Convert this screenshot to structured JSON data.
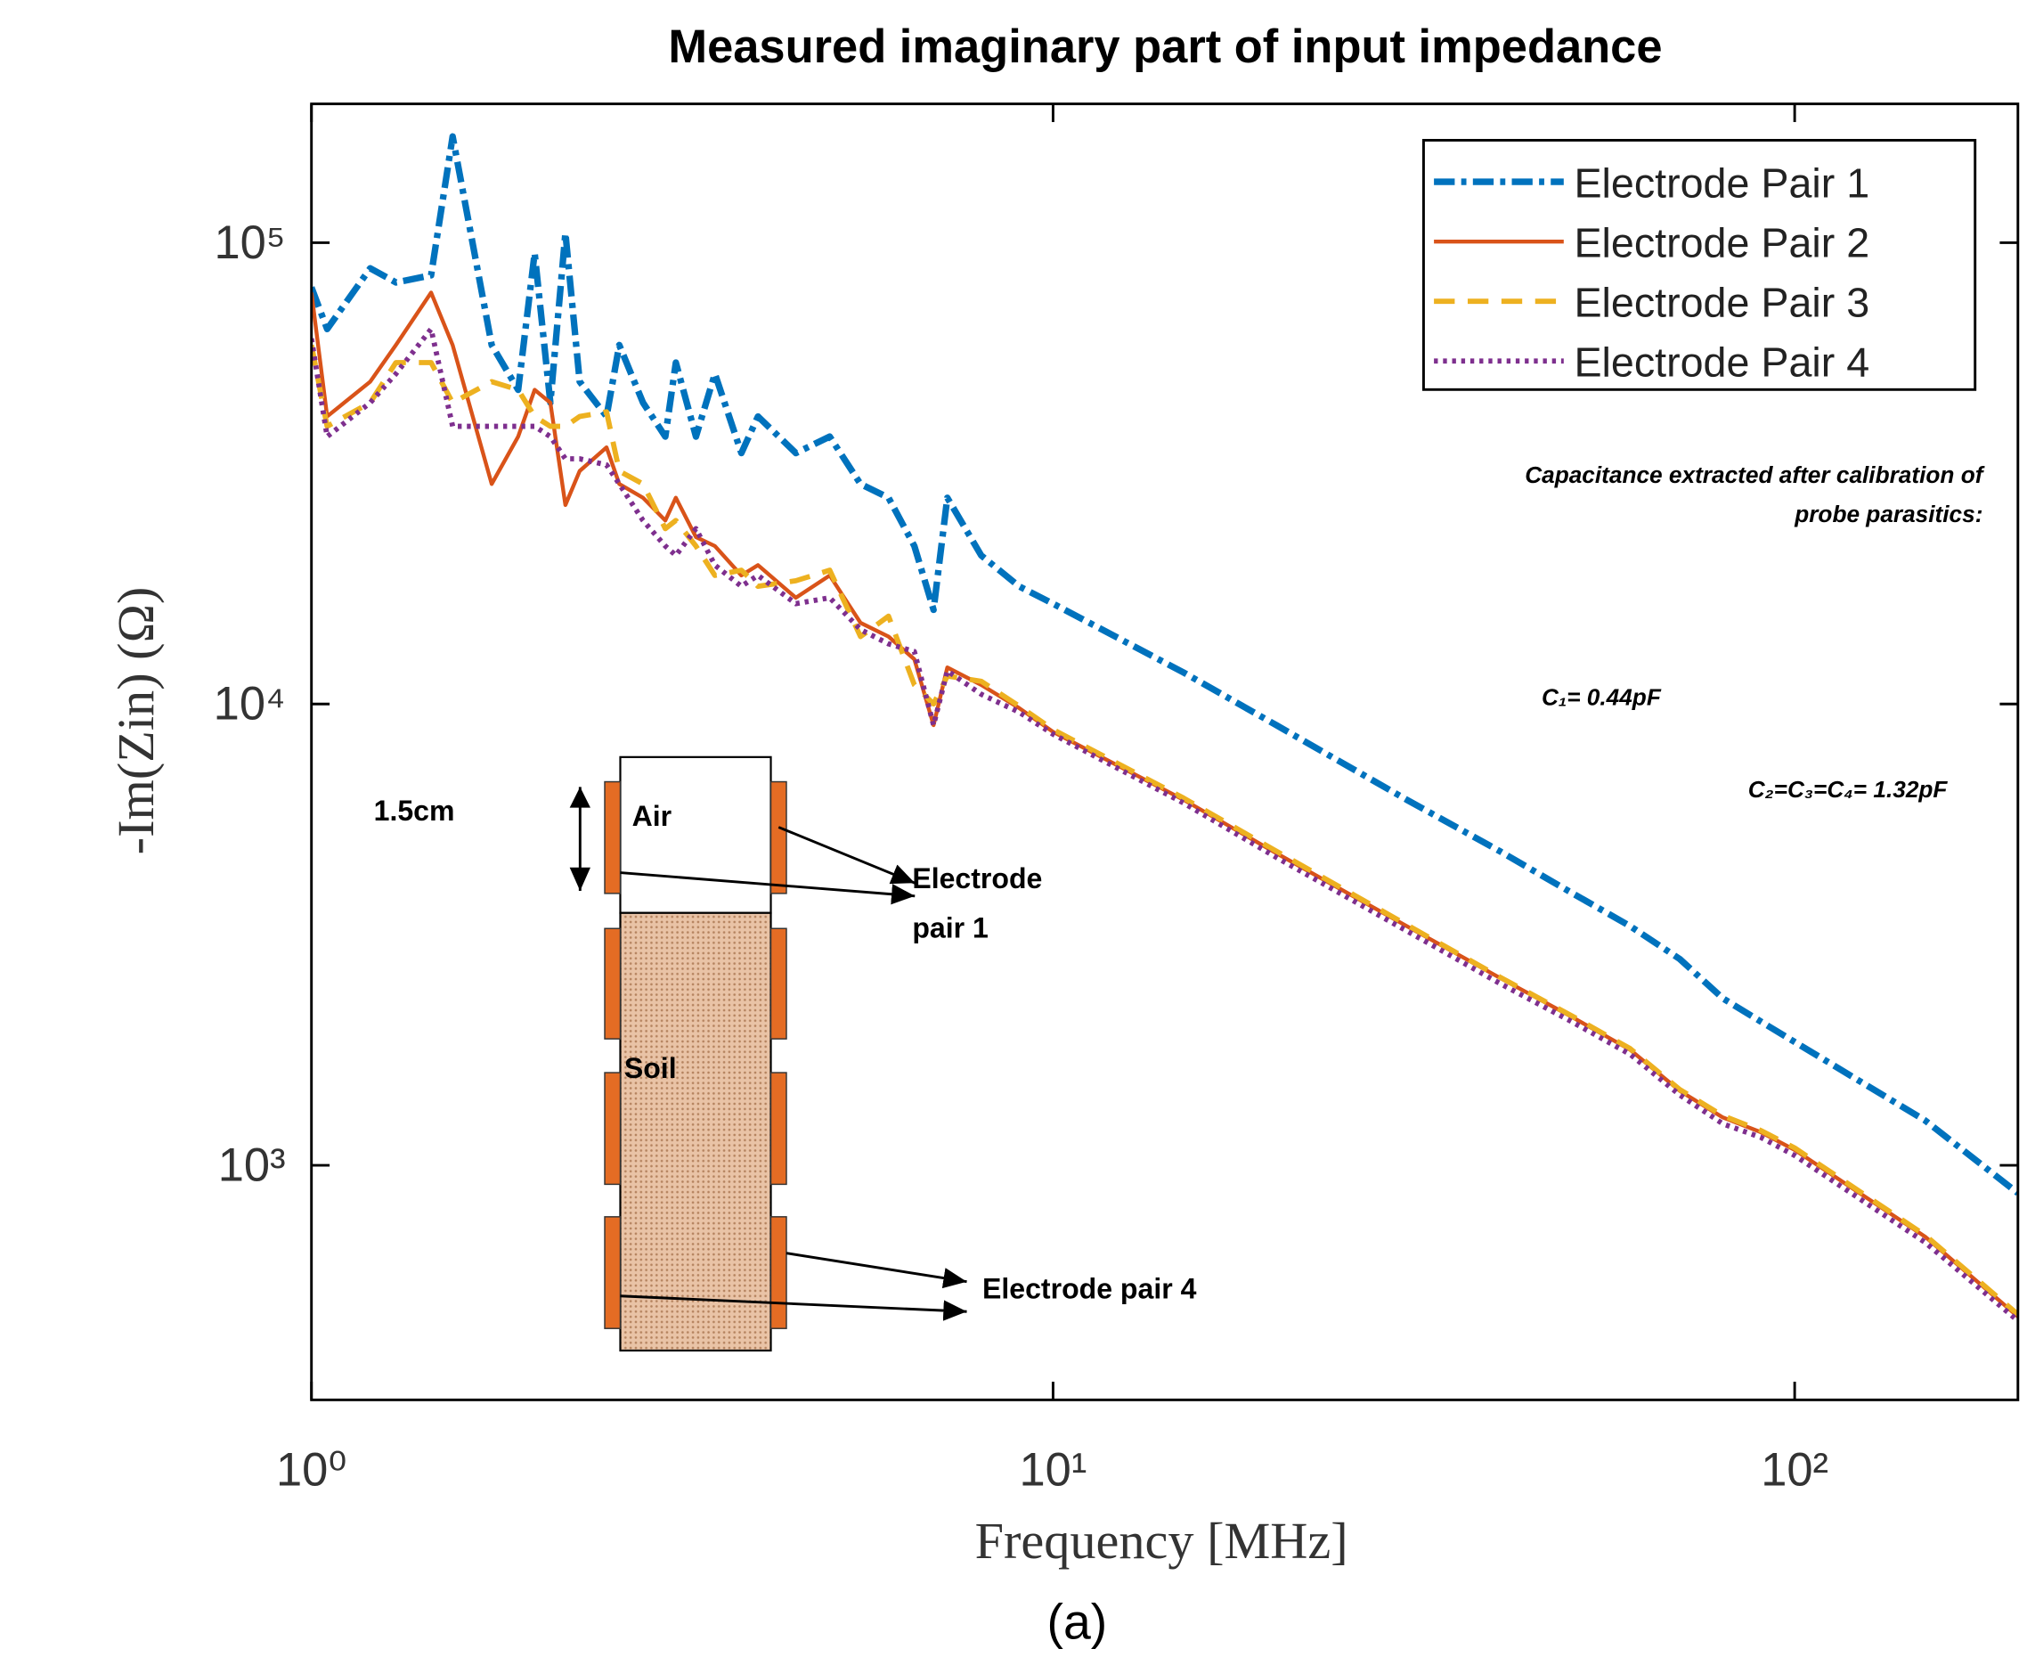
{
  "chart_data": {
    "type": "line",
    "title": "Measured imaginary part of input impedance",
    "xlabel": "Frequency [MHz]",
    "ylabel": "-Im(Zin) (Ω)",
    "caption": "(a)",
    "xscale": "log",
    "yscale": "log",
    "xlim": [
      1,
      200
    ],
    "ylim": [
      310,
      200000
    ],
    "xticks": [
      {
        "value": 1,
        "label": "10⁰"
      },
      {
        "value": 10,
        "label": "10¹"
      },
      {
        "value": 100,
        "label": "10²"
      }
    ],
    "yticks": [
      {
        "value": 1000,
        "label": "10³"
      },
      {
        "value": 10000,
        "label": "10⁴"
      },
      {
        "value": 100000,
        "label": "10⁵"
      }
    ],
    "legend": "upper right",
    "x": [
      1,
      1.05,
      1.2,
      1.3,
      1.45,
      1.55,
      1.75,
      1.9,
      2.0,
      2.1,
      2.2,
      2.3,
      2.5,
      2.6,
      2.8,
      3.0,
      3.1,
      3.3,
      3.5,
      3.8,
      4.0,
      4.5,
      5.0,
      5.5,
      6.0,
      6.5,
      6.9,
      7.2,
      8,
      9,
      10,
      15,
      20,
      30,
      40,
      50,
      60,
      70,
      80,
      90,
      100,
      150,
      200
    ],
    "series": [
      {
        "name": "Electrode Pair 1",
        "color": "#0072bd",
        "line_style": "dash-dot",
        "values": [
          80000,
          65000,
          88000,
          82000,
          85000,
          170000,
          60000,
          48000,
          95000,
          45000,
          105000,
          50000,
          42000,
          60000,
          45000,
          38000,
          55000,
          38000,
          52000,
          35000,
          42000,
          35000,
          38000,
          30000,
          28000,
          22000,
          16000,
          28000,
          21000,
          18000,
          16500,
          11700,
          9000,
          6200,
          4800,
          3900,
          3300,
          2800,
          2300,
          2050,
          1850,
          1250,
          870
        ]
      },
      {
        "name": "Electrode Pair 2",
        "color": "#d95319",
        "line_style": "solid",
        "values": [
          78000,
          42000,
          50000,
          60000,
          78000,
          60000,
          30000,
          38000,
          48000,
          45000,
          27000,
          32000,
          36000,
          30000,
          28000,
          25000,
          28000,
          23000,
          22000,
          19000,
          20000,
          17000,
          19000,
          15000,
          14000,
          12500,
          9000,
          12000,
          11000,
          9800,
          8700,
          6200,
          4750,
          3300,
          2550,
          2100,
          1780,
          1450,
          1270,
          1180,
          1080,
          700,
          470
        ]
      },
      {
        "name": "Electrode Pair 3",
        "color": "#edb120",
        "line_style": "dashed",
        "values": [
          60000,
          40000,
          45000,
          55000,
          55000,
          45000,
          50000,
          48000,
          42000,
          40000,
          40000,
          42000,
          43000,
          32000,
          30000,
          24000,
          25000,
          22000,
          19000,
          19500,
          18000,
          18500,
          19500,
          14000,
          15500,
          11000,
          10000,
          11500,
          11200,
          9900,
          8800,
          6250,
          4800,
          3320,
          2560,
          2110,
          1790,
          1460,
          1280,
          1190,
          1090,
          705,
          475
        ]
      },
      {
        "name": "Electrode Pair 4",
        "color": "#7e2f8e",
        "line_style": "dotted",
        "values": [
          62000,
          38000,
          45000,
          52000,
          65000,
          40000,
          40000,
          40000,
          40000,
          38000,
          34000,
          34000,
          33000,
          30000,
          25000,
          22000,
          21000,
          24000,
          20000,
          18000,
          19000,
          16500,
          17000,
          14500,
          13500,
          13000,
          9000,
          11800,
          10500,
          9600,
          8600,
          6100,
          4650,
          3220,
          2480,
          2050,
          1740,
          1420,
          1230,
          1150,
          1050,
          680,
          460
        ]
      }
    ],
    "annotations": [
      "Capacitance extracted after calibration of",
      "probe parasitics:",
      "C₁= 0.44pF",
      "C₂=C₃=C₄= 1.32pF"
    ],
    "inset": {
      "air": "Air",
      "soil": "Soil",
      "scale": "1.5cm",
      "electrode_pair_1": [
        "Electrode",
        "pair 1"
      ],
      "electrode_pair_4": "Electrode pair 4"
    }
  }
}
